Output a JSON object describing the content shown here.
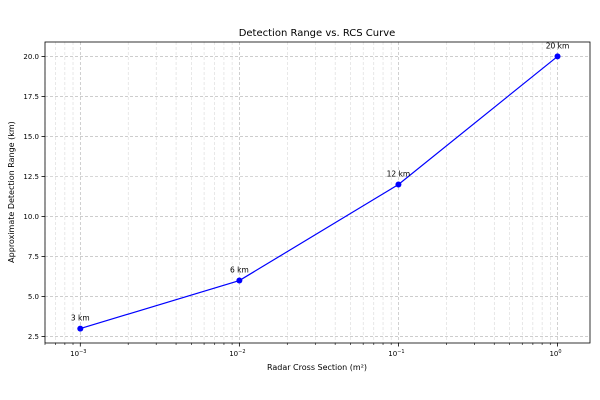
{
  "chart_data": {
    "type": "line",
    "title": "Detection Range vs. RCS Curve",
    "xlabel": "Radar Cross Section (m²)",
    "ylabel": "Approximate Detection Range (km)",
    "xscale": "log",
    "xlim": [
      0.0006,
      1.6
    ],
    "ylim": [
      2.1,
      20.9
    ],
    "grid": true,
    "x_ticks": [
      {
        "value": 0.001,
        "base": "10",
        "exp": "−3"
      },
      {
        "value": 0.01,
        "base": "10",
        "exp": "−2"
      },
      {
        "value": 0.1,
        "base": "10",
        "exp": "−1"
      },
      {
        "value": 1,
        "base": "10",
        "exp": "0"
      }
    ],
    "y_ticks": [
      2.5,
      5.0,
      7.5,
      10.0,
      12.5,
      15.0,
      17.5,
      20.0
    ],
    "series": [
      {
        "x": [
          0.001,
          0.01,
          0.1,
          1
        ],
        "y": [
          3,
          6,
          12,
          20
        ],
        "labels": [
          "3 km",
          "6 km",
          "12 km",
          "20 km"
        ],
        "color": "#0000ff",
        "marker": "circle"
      }
    ]
  }
}
